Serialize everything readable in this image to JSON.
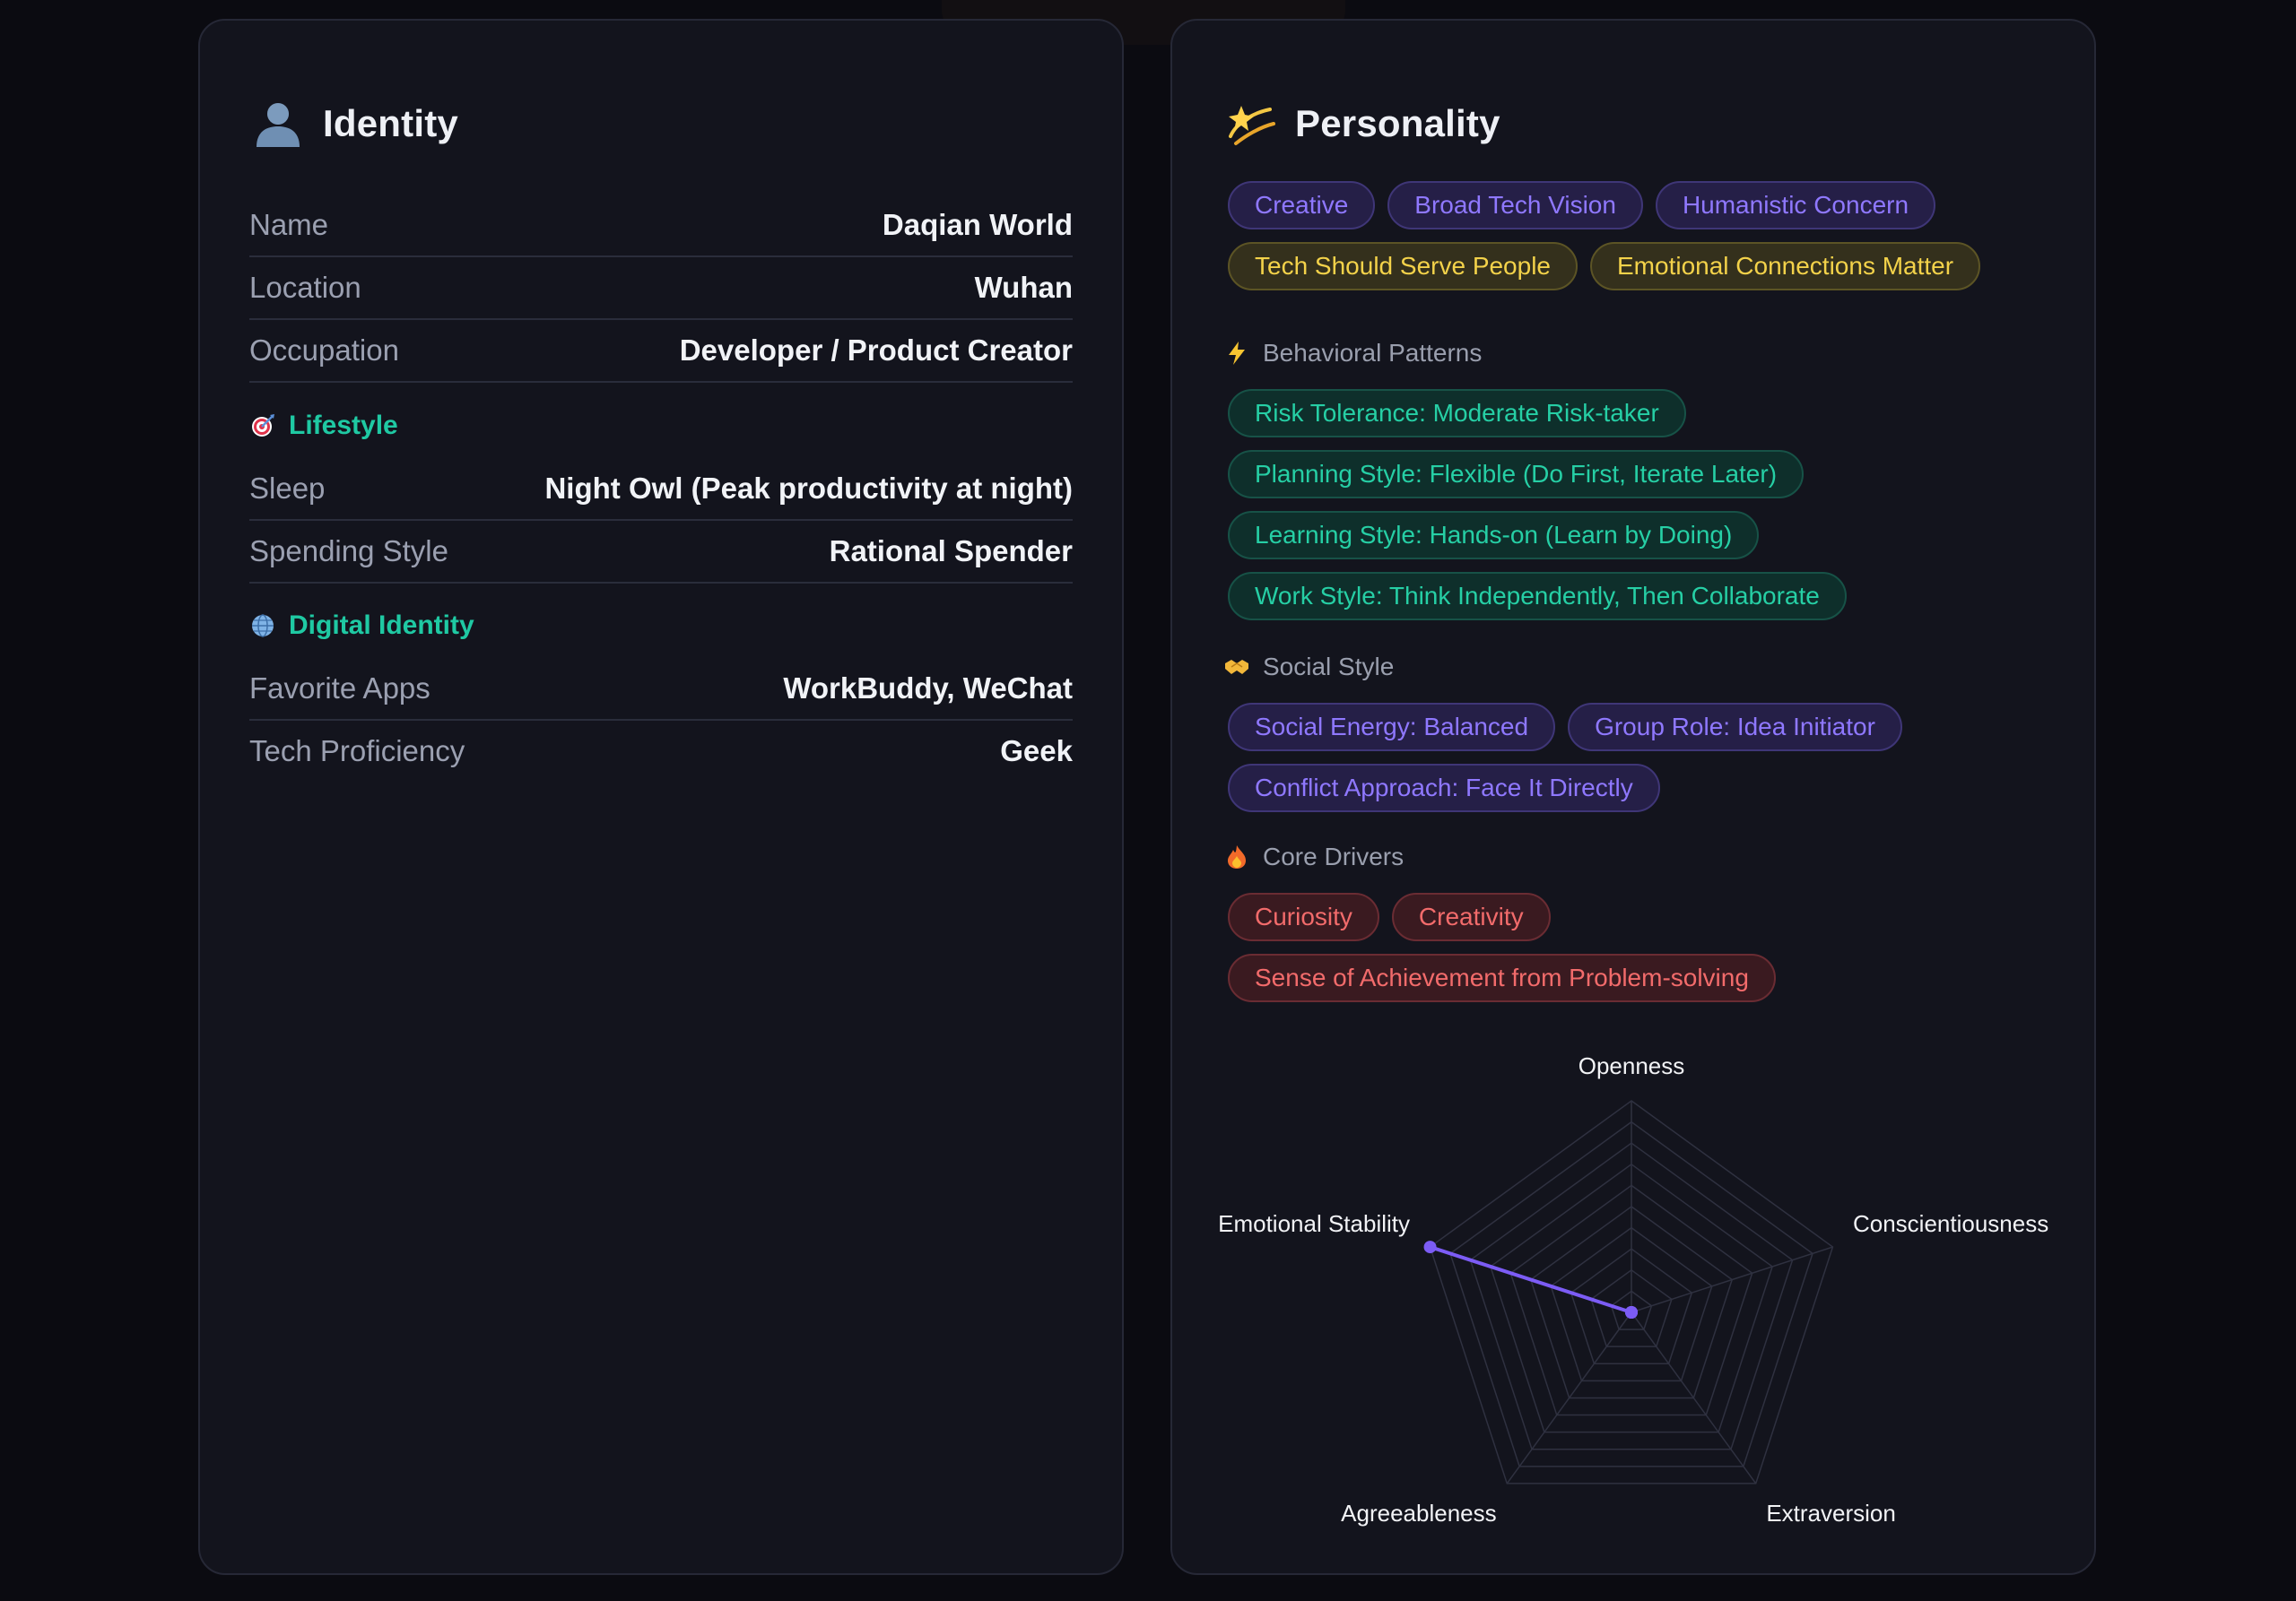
{
  "identity": {
    "title": "Identity",
    "icon": "user-silhouette-icon",
    "basic": [
      {
        "label": "Name",
        "value": "Daqian World"
      },
      {
        "label": "Location",
        "value": "Wuhan"
      },
      {
        "label": "Occupation",
        "value": "Developer / Product Creator"
      }
    ],
    "lifestyle": {
      "title": "Lifestyle",
      "icon": "target-icon",
      "rows": [
        {
          "label": "Sleep",
          "value": "Night Owl (Peak productivity at night)"
        },
        {
          "label": "Spending Style",
          "value": "Rational Spender"
        }
      ]
    },
    "digital": {
      "title": "Digital Identity",
      "icon": "globe-icon",
      "rows": [
        {
          "label": "Favorite Apps",
          "value": "WorkBuddy, WeChat"
        },
        {
          "label": "Tech Proficiency",
          "value": "Geek"
        }
      ]
    }
  },
  "personality": {
    "title": "Personality",
    "icon": "dizzy-star-icon",
    "traits": [
      "Creative",
      "Broad Tech Vision",
      "Humanistic Concern"
    ],
    "values": [
      "Tech Should Serve People",
      "Emotional Connections Matter"
    ],
    "behavioral": {
      "title": "Behavioral Patterns",
      "icon": "lightning-icon",
      "tags": [
        "Risk Tolerance: Moderate Risk-taker",
        "Planning Style: Flexible (Do First, Iterate Later)",
        "Learning Style: Hands-on (Learn by Doing)",
        "Work Style: Think Independently, Then Collaborate"
      ]
    },
    "social": {
      "title": "Social Style",
      "icon": "handshake-icon",
      "tags": [
        "Social Energy: Balanced",
        "Group Role: Idea Initiator",
        "Conflict Approach: Face It Directly"
      ]
    },
    "drivers": {
      "title": "Core Drivers",
      "icon": "fire-icon",
      "tags": [
        "Curiosity",
        "Creativity",
        "Sense of Achievement from Problem-solving"
      ]
    }
  },
  "chart_data": {
    "type": "radar",
    "axes": [
      "Openness",
      "Conscientiousness",
      "Extraversion",
      "Agreeableness",
      "Emotional Stability"
    ],
    "values": [
      0,
      0,
      0,
      0,
      1
    ],
    "range": [
      0,
      1
    ],
    "grid_levels": 10,
    "colors": {
      "series": "#7c5cf5",
      "grid": "#2f3140"
    }
  }
}
